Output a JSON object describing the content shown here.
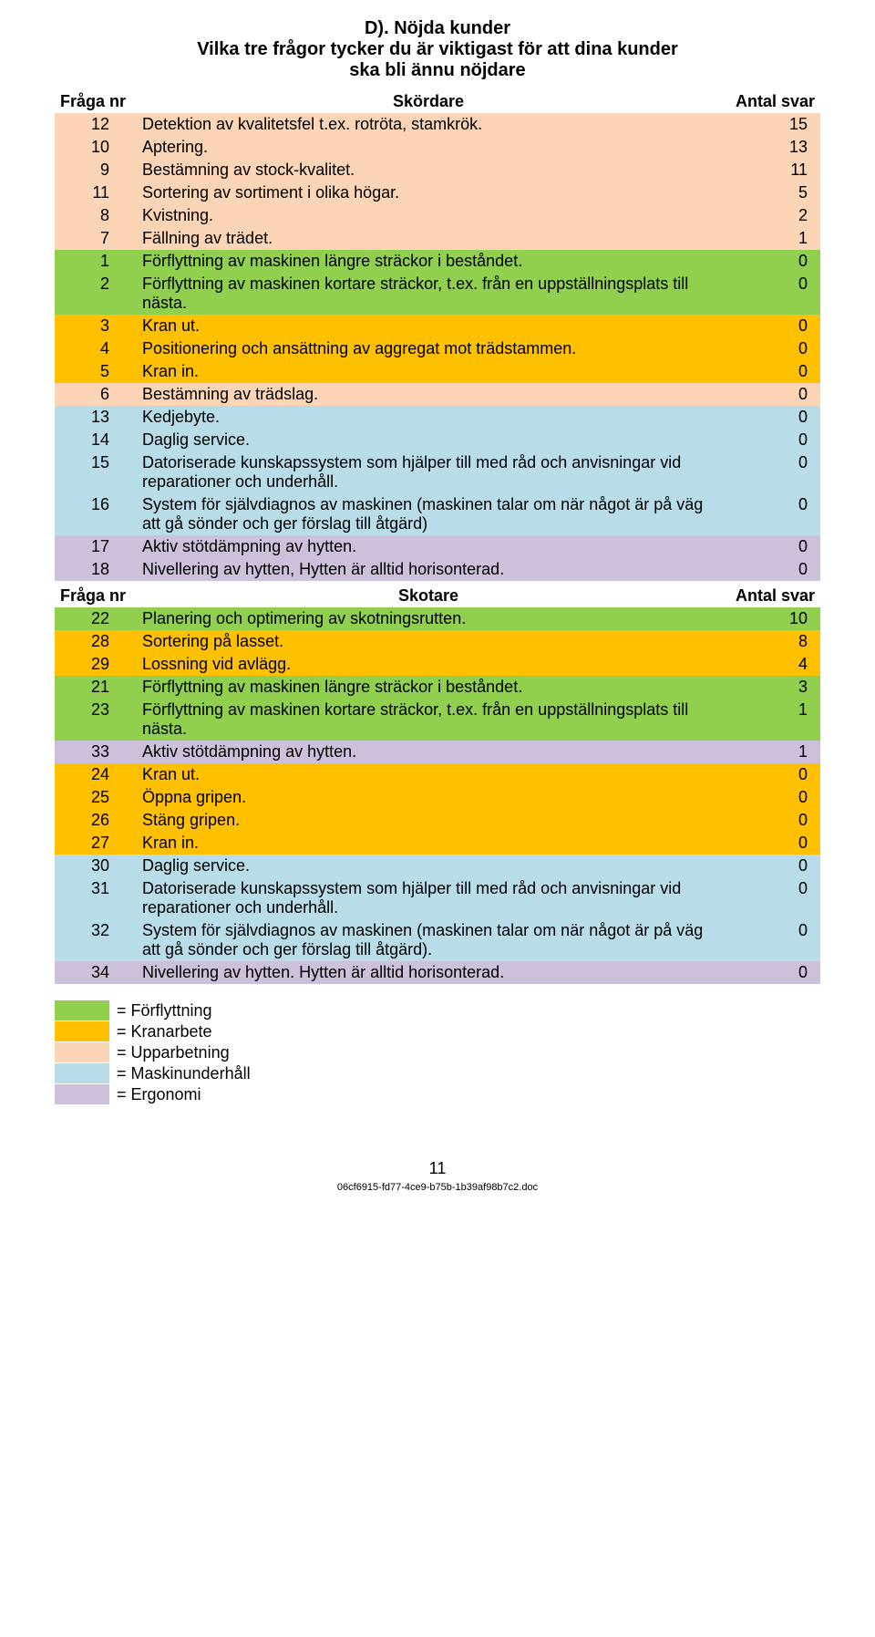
{
  "colors": {
    "forflyttning": "#91d04e",
    "kranarbete": "#ffc000",
    "upparbetning": "#fbd5b5",
    "maskinunderhall": "#b8dde8",
    "ergonomi": "#ccc0da",
    "white": "#ffffff"
  },
  "title": "D). Nöjda kunder",
  "subtitle1": "Vilka tre frågor tycker du är viktigast för att dina kunder",
  "subtitle2": "ska bli ännu nöjdare",
  "table1": {
    "headers": {
      "nr": "Fråga nr",
      "desc": "Skördare",
      "val": "Antal svar"
    },
    "rows": [
      {
        "nr": "12",
        "desc": "Detektion av kvalitetsfel t.ex. rotröta, stamkrök.",
        "val": "15",
        "cat": "upparbetning"
      },
      {
        "nr": "10",
        "desc": "Aptering.",
        "val": "13",
        "cat": "upparbetning"
      },
      {
        "nr": "9",
        "desc": "Bestämning av stock-kvalitet.",
        "val": "11",
        "cat": "upparbetning"
      },
      {
        "nr": "11",
        "desc": "Sortering av sortiment i olika högar.",
        "val": "5",
        "cat": "upparbetning"
      },
      {
        "nr": "8",
        "desc": "Kvistning.",
        "val": "2",
        "cat": "upparbetning"
      },
      {
        "nr": "7",
        "desc": "Fällning av trädet.",
        "val": "1",
        "cat": "upparbetning"
      },
      {
        "nr": "1",
        "desc": "Förflyttning av maskinen längre sträckor i beståndet.",
        "val": "0",
        "cat": "forflyttning"
      },
      {
        "nr": "2",
        "desc": "Förflyttning av maskinen kortare sträckor, t.ex. från en uppställningsplats till nästa.",
        "val": "0",
        "cat": "forflyttning"
      },
      {
        "nr": "3",
        "desc": "Kran ut.",
        "val": "0",
        "cat": "kranarbete"
      },
      {
        "nr": "4",
        "desc": "Positionering och ansättning av aggregat mot trädstammen.",
        "val": "0",
        "cat": "kranarbete"
      },
      {
        "nr": "5",
        "desc": "Kran in.",
        "val": "0",
        "cat": "kranarbete"
      },
      {
        "nr": "6",
        "desc": "Bestämning av trädslag.",
        "val": "0",
        "cat": "upparbetning"
      },
      {
        "nr": "13",
        "desc": "Kedjebyte.",
        "val": "0",
        "cat": "maskinunderhall"
      },
      {
        "nr": "14",
        "desc": "Daglig service.",
        "val": "0",
        "cat": "maskinunderhall"
      },
      {
        "nr": "15",
        "desc": "Datoriserade kunskapssystem som hjälper till med råd och anvisningar vid reparationer och underhåll.",
        "val": "0",
        "cat": "maskinunderhall"
      },
      {
        "nr": "16",
        "desc": "System för självdiagnos av maskinen (maskinen talar om när något är på väg att gå sönder och ger förslag till åtgärd)",
        "val": "0",
        "cat": "maskinunderhall"
      },
      {
        "nr": "17",
        "desc": "Aktiv stötdämpning av hytten.",
        "val": "0",
        "cat": "ergonomi"
      },
      {
        "nr": "18",
        "desc": "Nivellering av hytten, Hytten är alltid horisonterad.",
        "val": "0",
        "cat": "ergonomi"
      }
    ]
  },
  "table2": {
    "headers": {
      "nr": "Fråga nr",
      "desc": "Skotare",
      "val": "Antal svar"
    },
    "rows": [
      {
        "nr": "22",
        "desc": "Planering och optimering av skotningsrutten.",
        "val": "10",
        "cat": "forflyttning"
      },
      {
        "nr": "28",
        "desc": "Sortering på lasset.",
        "val": "8",
        "cat": "kranarbete"
      },
      {
        "nr": "29",
        "desc": "Lossning vid avlägg.",
        "val": "4",
        "cat": "kranarbete"
      },
      {
        "nr": "21",
        "desc": "Förflyttning av maskinen längre sträckor i beståndet.",
        "val": "3",
        "cat": "forflyttning"
      },
      {
        "nr": "23",
        "desc": "Förflyttning av maskinen kortare sträckor, t.ex. från en uppställningsplats till nästa.",
        "val": "1",
        "cat": "forflyttning"
      },
      {
        "nr": "33",
        "desc": "Aktiv stötdämpning av hytten.",
        "val": "1",
        "cat": "ergonomi"
      },
      {
        "nr": "24",
        "desc": "Kran ut.",
        "val": "0",
        "cat": "kranarbete"
      },
      {
        "nr": "25",
        "desc": "Öppna gripen.",
        "val": "0",
        "cat": "kranarbete"
      },
      {
        "nr": "26",
        "desc": "Stäng gripen.",
        "val": "0",
        "cat": "kranarbete"
      },
      {
        "nr": "27",
        "desc": "Kran in.",
        "val": "0",
        "cat": "kranarbete"
      },
      {
        "nr": "30",
        "desc": "Daglig service.",
        "val": "0",
        "cat": "maskinunderhall"
      },
      {
        "nr": "31",
        "desc": "Datoriserade kunskapssystem som hjälper till med råd och anvisningar vid reparationer och underhåll.",
        "val": "0",
        "cat": "maskinunderhall"
      },
      {
        "nr": "32",
        "desc": "System för självdiagnos av maskinen (maskinen talar om när något är på väg att gå sönder och ger förslag till åtgärd).",
        "val": "0",
        "cat": "maskinunderhall"
      },
      {
        "nr": "34",
        "desc": "Nivellering av hytten. Hytten är alltid horisonterad.",
        "val": "0",
        "cat": "ergonomi"
      }
    ]
  },
  "legend": [
    {
      "cat": "forflyttning",
      "label": "= Förflyttning"
    },
    {
      "cat": "kranarbete",
      "label": "= Kranarbete"
    },
    {
      "cat": "upparbetning",
      "label": "= Upparbetning"
    },
    {
      "cat": "maskinunderhall",
      "label": "= Maskinunderhåll"
    },
    {
      "cat": "ergonomi",
      "label": "= Ergonomi"
    }
  ],
  "page_number": "11",
  "footer_file": "06cf6915-fd77-4ce9-b75b-1b39af98b7c2.doc"
}
